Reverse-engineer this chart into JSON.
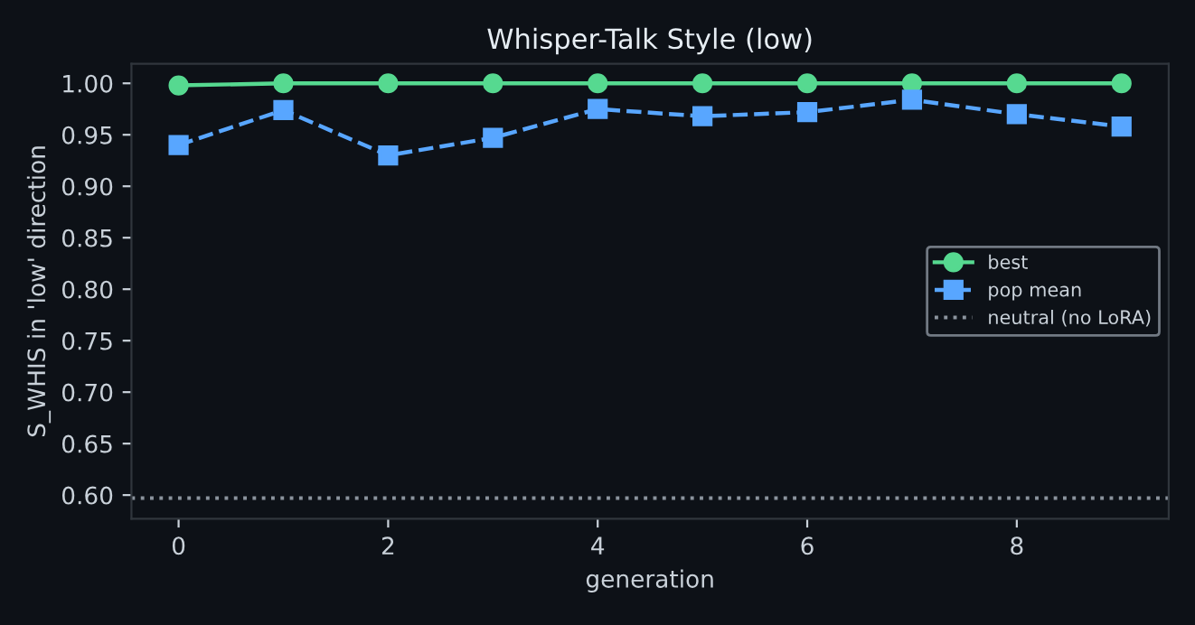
{
  "chart_data": {
    "type": "line",
    "title": "Whisper-Talk Style (low)",
    "xlabel": "generation",
    "ylabel": "S_WHIS in 'low' direction",
    "x": [
      0,
      1,
      2,
      3,
      4,
      5,
      6,
      7,
      8,
      9
    ],
    "series": [
      {
        "name": "best",
        "color": "#56d990",
        "marker": "circle",
        "line_style": "solid",
        "values": [
          0.998,
          1.0,
          1.0,
          1.0,
          1.0,
          1.0,
          1.0,
          1.0,
          1.0,
          1.0
        ]
      },
      {
        "name": "pop mean",
        "color": "#58a6ff",
        "marker": "square",
        "line_style": "dashed",
        "values": [
          0.94,
          0.974,
          0.93,
          0.947,
          0.975,
          0.968,
          0.972,
          0.984,
          0.97,
          0.958
        ]
      }
    ],
    "ref_lines": [
      {
        "axis": "y",
        "value": 0.597,
        "label": "neutral (no LoRA)",
        "color": "#8b949e",
        "line_style": "dotted"
      }
    ],
    "xlim": [
      -0.45,
      9.45
    ],
    "xticks": [
      0,
      2,
      4,
      6,
      8
    ],
    "ylim": [
      0.577,
      1.019
    ],
    "yticks": [
      {
        "value": 0.6,
        "label": "0.60"
      },
      {
        "value": 0.65,
        "label": "0.65"
      },
      {
        "value": 0.7,
        "label": "0.70"
      },
      {
        "value": 0.75,
        "label": "0.75"
      },
      {
        "value": 0.8,
        "label": "0.80"
      },
      {
        "value": 0.85,
        "label": "0.85"
      },
      {
        "value": 0.9,
        "label": "0.90"
      },
      {
        "value": 0.95,
        "label": "0.95"
      },
      {
        "value": 1.0,
        "label": "1.00"
      }
    ],
    "grid": false,
    "legend": "right"
  }
}
